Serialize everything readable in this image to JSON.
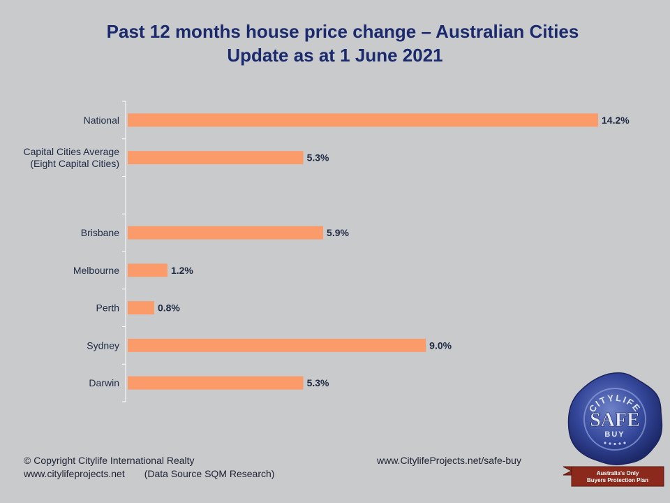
{
  "header": {
    "title_line1": "Past 12 months house price change – Australian Cities",
    "title_line2": "Update as at 1 June 2021"
  },
  "chart_data": {
    "type": "bar",
    "orientation": "horizontal",
    "title": "Past 12 months house price change – Australian Cities",
    "subtitle": "Update as at 1 June 2021",
    "categories": [
      [
        "National"
      ],
      [
        "Capital Cities Average",
        "(Eight Capital Cities)"
      ],
      [],
      [
        "Brisbane"
      ],
      [
        "Melbourne"
      ],
      [
        "Perth"
      ],
      [
        "Sydney"
      ],
      [
        "Darwin"
      ]
    ],
    "values": [
      14.2,
      5.3,
      null,
      5.9,
      1.2,
      0.8,
      9.0,
      5.3
    ],
    "value_labels": [
      "14.2%",
      "5.3%",
      "",
      "5.9%",
      "1.2%",
      "0.8%",
      "9.0%",
      "5.3%"
    ],
    "xlim": [
      0,
      14.2
    ],
    "bar_color": "#fb9b6a",
    "grid": false,
    "legend": "none"
  },
  "footer": {
    "copyright": "© Copyright Citylife International  Realty",
    "website": "www.citylifeprojects.net",
    "source": "(Data Source SQM Research)",
    "safe_buy_url": "www.CitylifeProjects.net/safe-buy"
  },
  "seal": {
    "arc_text": "CITYLIFE",
    "main_text": "SAFE",
    "sub_text": "BUY",
    "ribbon_line1": "Australia's Only",
    "ribbon_line2": "Buyers Protection Plan"
  },
  "colors": {
    "title": "#1a2a6c",
    "background": "#c8cacc",
    "bar": "#fb9b6a",
    "seal": "#2c3e8c",
    "ribbon": "#8b2a1c"
  }
}
